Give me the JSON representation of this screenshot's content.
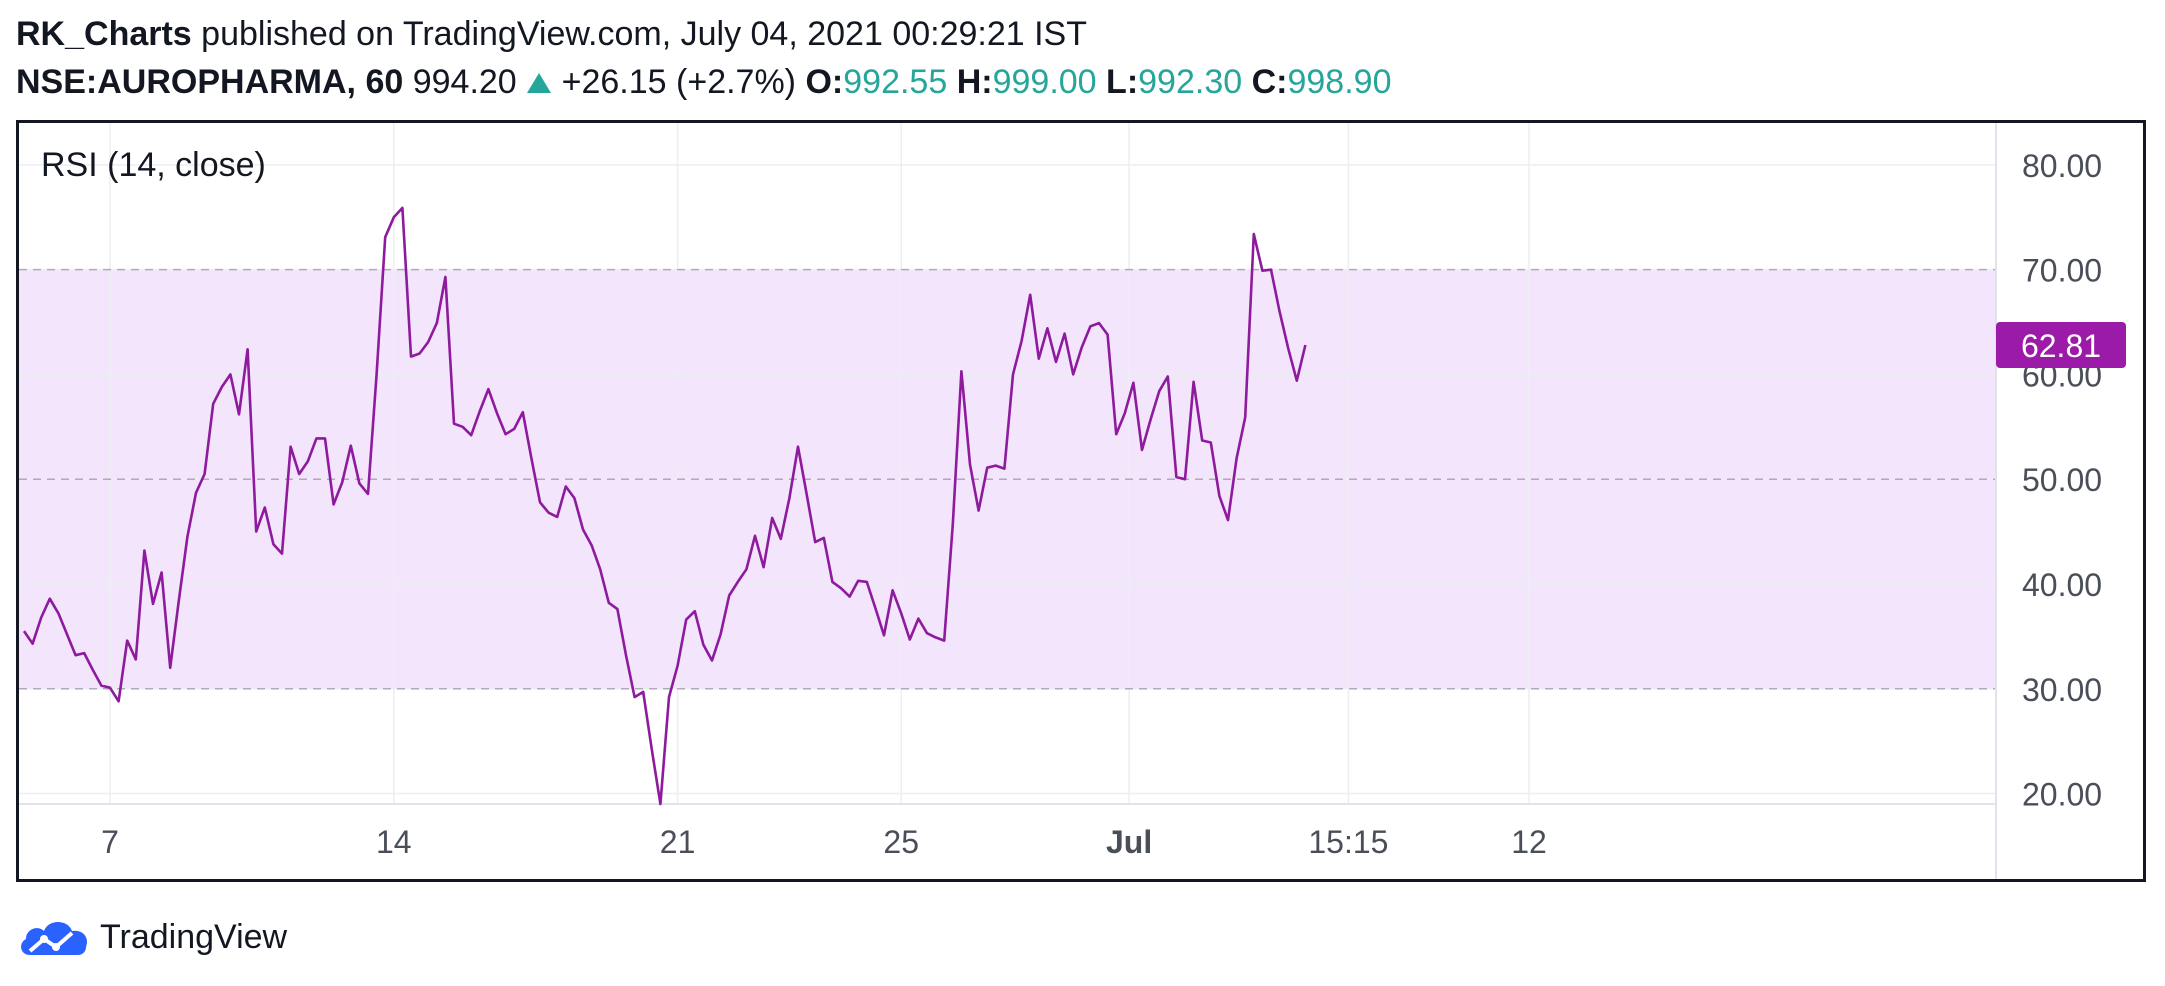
{
  "header": {
    "author": "RK_Charts",
    "published_text": " published on TradingView.com, July 04, 2021 00:29:21 IST",
    "symbol": "NSE:AUROPHARMA, 60",
    "price": "994.20",
    "change": "+26.15 (+2.7%)",
    "o_label": "O:",
    "o_value": "992.55",
    "h_label": "H:",
    "h_value": "999.00",
    "l_label": "L:",
    "l_value": "992.30",
    "c_label": "C:",
    "c_value": "998.90",
    "up_arrow_icon": "triangle-up-icon"
  },
  "footer": {
    "brand": "TradingView",
    "logo_icon": "tradingview-cloud-logo-icon"
  },
  "colors": {
    "line": "#8e1a9e",
    "band": "#f3e5fc",
    "price_up": "#26a69a",
    "last_value_bg": "#9c1aa8"
  },
  "chart_data": {
    "type": "line",
    "title": "RSI (14, close)",
    "ylim": [
      19,
      84
    ],
    "y_ticks": [
      20,
      30,
      40,
      50,
      60,
      70,
      80
    ],
    "y_tick_labels": [
      "20.00",
      "30.00",
      "40.00",
      "50.00",
      "60.00",
      "70.00",
      "80.00"
    ],
    "x_tick_labels": [
      {
        "label": "7",
        "bar": 10,
        "bold": false
      },
      {
        "label": "14",
        "bar": 43,
        "bold": false
      },
      {
        "label": "21",
        "bar": 76,
        "bold": false
      },
      {
        "label": "25",
        "bar": 102,
        "bold": false
      },
      {
        "label": "Jul",
        "bar": 128.5,
        "bold": true
      },
      {
        "label": "15:15",
        "bar": 154,
        "bold": false
      },
      {
        "label": "12",
        "bar": 175,
        "bold": false
      }
    ],
    "x_range": [
      0,
      175.5
    ],
    "bands": {
      "upper": 70,
      "middle": 50,
      "lower": 30
    },
    "last_value": 62.81,
    "last_value_label": "62.81",
    "series": [
      {
        "values": [
          35.5,
          34.3,
          36.8,
          38.6,
          37.2,
          35.2,
          33.2,
          33.4,
          31.8,
          30.3,
          30.1,
          28.8,
          34.6,
          32.8,
          43.2,
          38.1,
          41.1,
          32.0,
          38.4,
          44.5,
          48.7,
          50.5,
          57.2,
          58.8,
          60.0,
          56.2,
          62.4,
          45.0,
          47.3,
          43.8,
          42.9,
          53.1,
          50.5,
          51.7,
          53.9,
          53.9,
          47.6,
          49.7,
          53.2,
          49.6,
          48.6,
          60.0,
          73.1,
          75.0,
          75.9,
          61.7,
          62.0,
          63.1,
          64.9,
          69.3,
          55.3,
          55.0,
          54.2,
          56.5,
          58.6,
          56.3,
          54.3,
          54.8,
          56.4,
          52.0,
          47.8,
          46.8,
          46.4,
          49.3,
          48.2,
          45.2,
          43.7,
          41.4,
          38.2,
          37.6,
          33.2,
          29.2,
          29.7,
          24.2,
          19.0,
          29.2,
          32.2,
          36.6,
          37.4,
          34.2,
          32.7,
          35.2,
          38.9,
          40.2,
          41.4,
          44.6,
          41.6,
          46.3,
          44.3,
          48.2,
          53.1,
          48.6,
          44.0,
          44.4,
          40.2,
          39.6,
          38.8,
          40.3,
          40.2,
          37.7,
          35.1,
          39.4,
          37.2,
          34.7,
          36.7,
          35.3,
          34.9,
          34.6,
          45.7,
          60.3,
          51.4,
          47.0,
          51.1,
          51.3,
          51.0,
          60.0,
          63.2,
          67.6,
          61.5,
          64.4,
          61.2,
          63.9,
          60.0,
          62.6,
          64.6,
          64.9,
          63.8,
          54.3,
          56.3,
          59.2,
          52.8,
          55.7,
          58.4,
          59.8,
          50.2,
          50.0,
          59.3,
          53.7,
          53.5,
          48.4,
          46.1,
          52.0,
          55.9,
          73.4,
          69.9,
          70.0,
          66.0,
          62.5,
          59.4,
          62.81
        ]
      }
    ]
  }
}
